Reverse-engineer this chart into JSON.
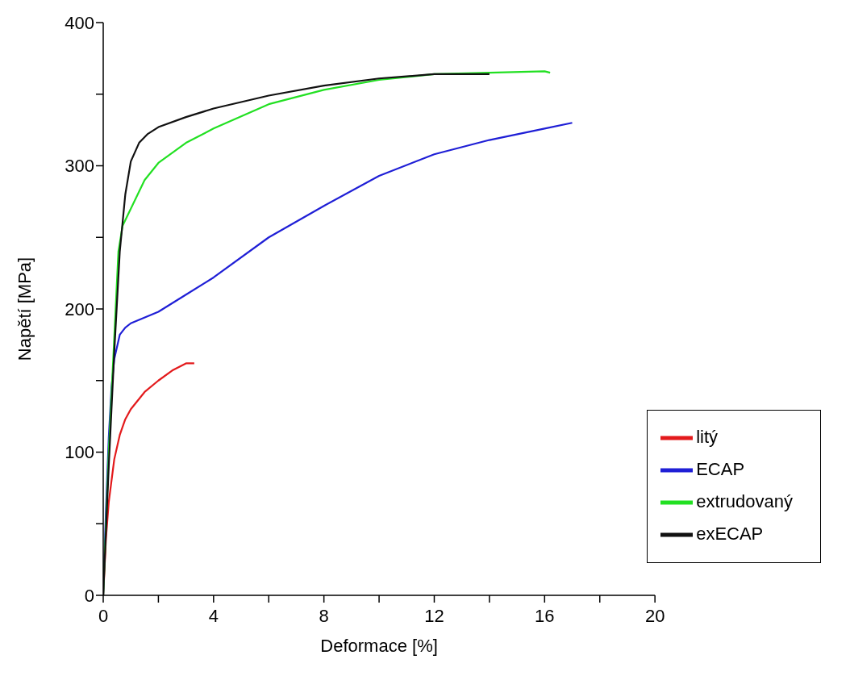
{
  "chart_data": {
    "type": "line",
    "xlabel": "Deformace [%]",
    "ylabel": "Napětí [MPa]",
    "xlim": [
      0,
      20
    ],
    "xticks": [
      0,
      {
        "value": 2,
        "label": null
      },
      4,
      {
        "value": 6,
        "label": null
      },
      8,
      {
        "value": 10,
        "label": null
      },
      12,
      {
        "value": 14,
        "label": null
      },
      16,
      {
        "value": 18,
        "label": null
      },
      20
    ],
    "ylim": [
      0,
      400
    ],
    "yticks": [
      0,
      {
        "value": 50,
        "label": null
      },
      100,
      {
        "value": 150,
        "label": null
      },
      200,
      {
        "value": 250,
        "label": null
      },
      300,
      {
        "value": 350,
        "label": null
      },
      400
    ],
    "grid": false,
    "legend": "bottom right",
    "marker": "none",
    "line_style": "solid",
    "series": [
      {
        "name": "litý",
        "color": "#e31a1c",
        "x": [
          0,
          0.1,
          0.2,
          0.4,
          0.6,
          0.8,
          1.0,
          1.5,
          2.0,
          2.5,
          3.0,
          3.3
        ],
        "values": [
          0,
          40,
          65,
          95,
          112,
          123,
          130,
          142,
          150,
          157,
          162,
          162
        ]
      },
      {
        "name": "ECAP",
        "color": "#1f1fd6",
        "x": [
          0,
          0.1,
          0.2,
          0.3,
          0.4,
          0.6,
          0.8,
          1.0,
          2,
          3,
          4,
          6,
          8,
          10,
          12,
          14,
          16,
          17
        ],
        "values": [
          0,
          60,
          110,
          145,
          165,
          182,
          187,
          190,
          198,
          210,
          222,
          250,
          272,
          293,
          308,
          318,
          326,
          330
        ]
      },
      {
        "name": "extrudovaný",
        "color": "#22e022",
        "x": [
          0,
          0.2,
          0.4,
          0.55,
          0.7,
          1,
          1.5,
          2,
          3,
          4,
          6,
          8,
          10,
          12,
          14,
          16,
          16.2
        ],
        "values": [
          0,
          100,
          180,
          240,
          258,
          270,
          290,
          302,
          316,
          326,
          343,
          353,
          360,
          364,
          365,
          366,
          365
        ]
      },
      {
        "name": "exECAP",
        "color": "#111111",
        "x": [
          0,
          0.2,
          0.4,
          0.6,
          0.8,
          1.0,
          1.3,
          1.6,
          2,
          3,
          4,
          6,
          8,
          10,
          12,
          14
        ],
        "values": [
          0,
          90,
          170,
          240,
          280,
          303,
          316,
          322,
          327,
          334,
          340,
          349,
          356,
          361,
          364,
          364
        ]
      }
    ]
  }
}
